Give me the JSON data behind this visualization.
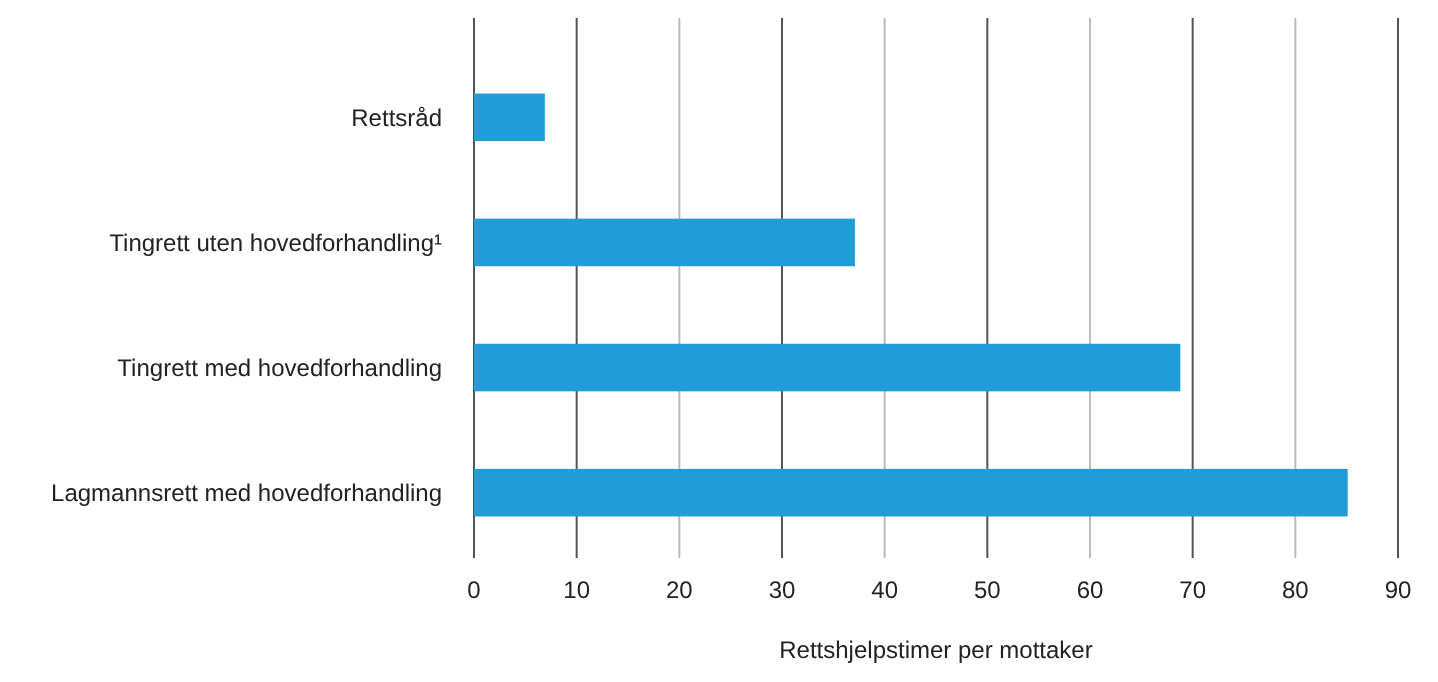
{
  "chart_data": {
    "type": "bar",
    "orientation": "horizontal",
    "xlabel": "Rettshjelpstimer per mottaker",
    "categories": [
      "Rettsråd",
      "Tingrett uten hovedforhandling¹",
      "Tingrett med hovedforhandling",
      "Lagmannsrett med hovedforhandling"
    ],
    "values": [
      6.9,
      37.1,
      68.8,
      85.1
    ],
    "color": "#1f9dd9",
    "xlim": [
      0,
      90
    ],
    "xticks": [
      0,
      10,
      20,
      30,
      40,
      50,
      60,
      70,
      80,
      90
    ],
    "grid": "x"
  }
}
